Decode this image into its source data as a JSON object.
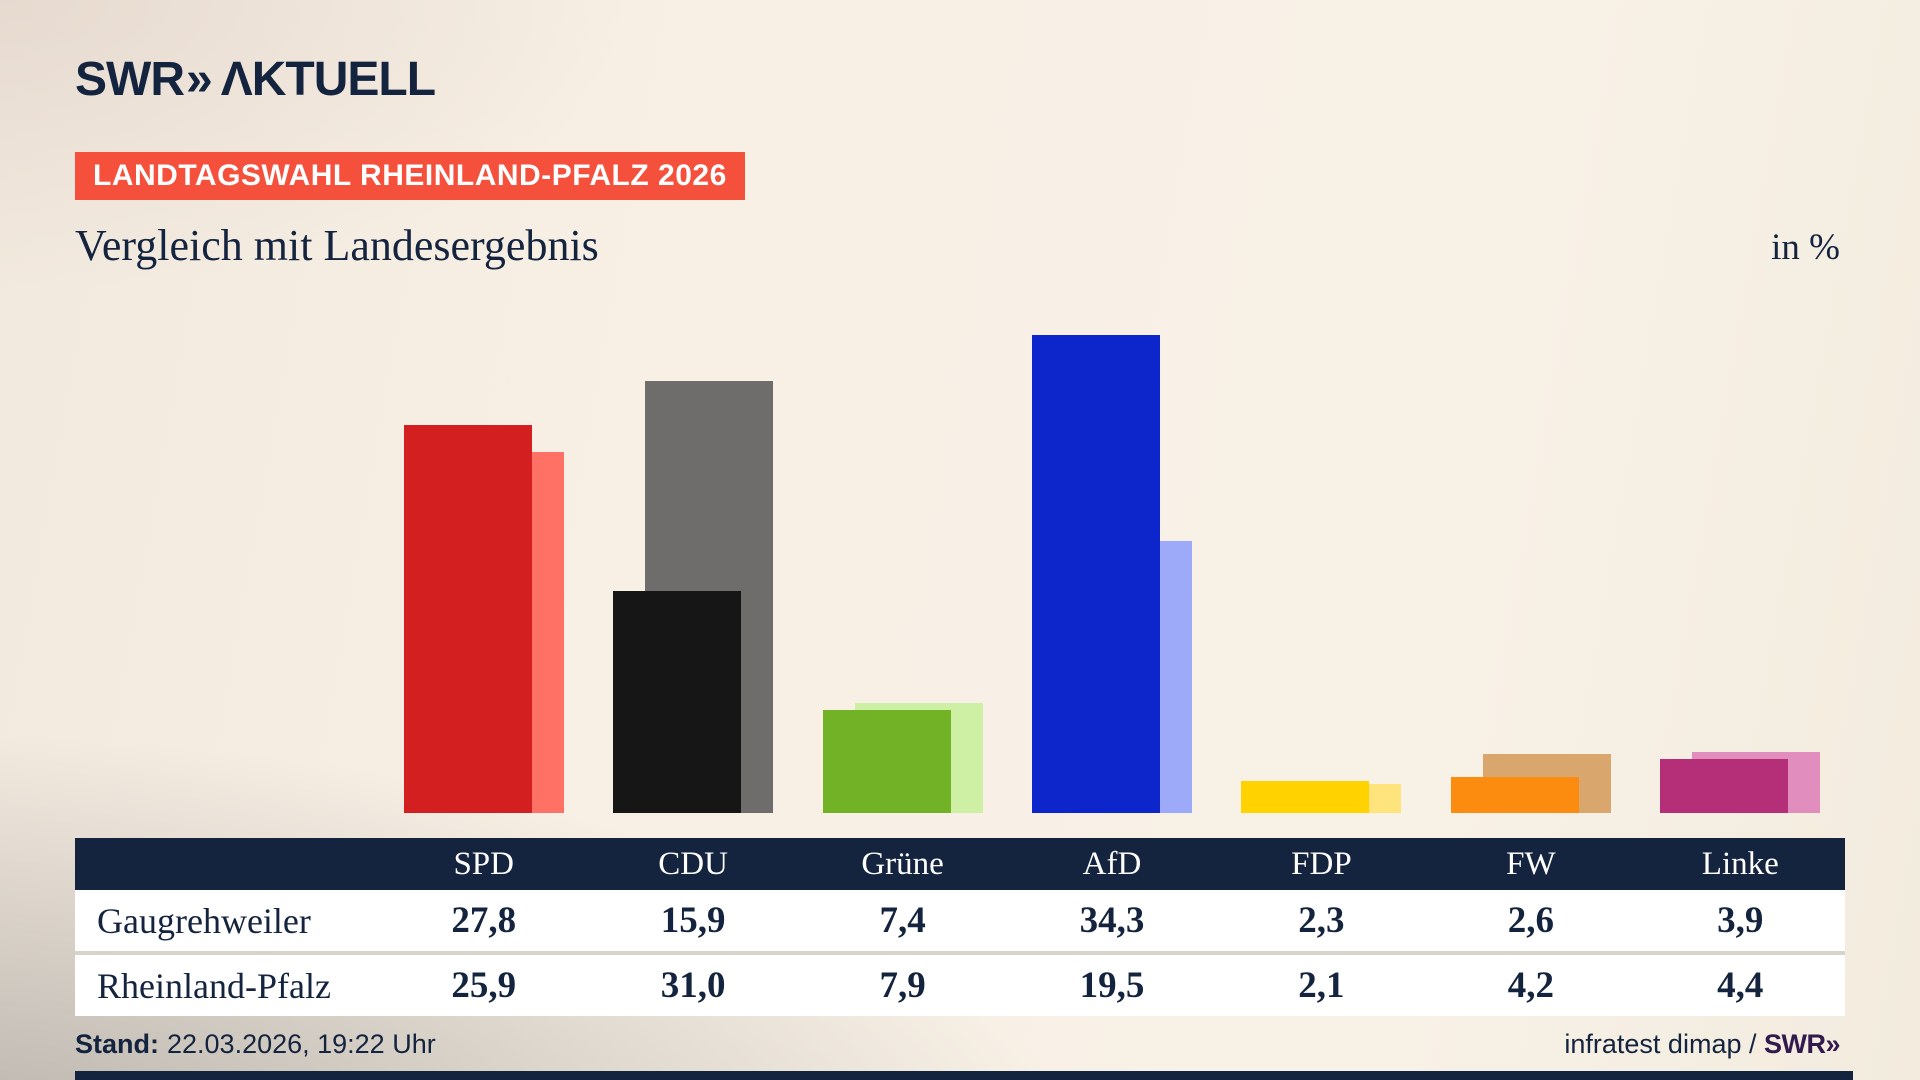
{
  "header": {
    "logo_brand": "SWR",
    "logo_chevron": "»",
    "logo_product": "ΛKTUELL",
    "badge": "LANDTAGSWAHL RHEINLAND-PFALZ 2026",
    "title": "Vergleich mit Landesergebnis",
    "unit_label": "in %"
  },
  "chart_data": {
    "type": "bar",
    "title": "Vergleich mit Landesergebnis",
    "unit": "in %",
    "categories": [
      "SPD",
      "CDU",
      "Grüne",
      "AfD",
      "FDP",
      "FW",
      "Linke"
    ],
    "series": [
      {
        "name": "Gaugrehweiler",
        "values": [
          27.8,
          15.9,
          7.4,
          34.3,
          2.3,
          2.6,
          3.9
        ]
      },
      {
        "name": "Rheinland-Pfalz",
        "values": [
          25.9,
          31.0,
          7.9,
          19.5,
          2.1,
          4.2,
          4.4
        ]
      }
    ],
    "bar_colors": {
      "gaugrehweiler": [
        "#d31f1f",
        "#161616",
        "#72b226",
        "#0c26cc",
        "#ffd200",
        "#fc8c10",
        "#b52f78"
      ],
      "rheinland_pfalz": [
        "#ff7165",
        "#6e6d6b",
        "#cdf0a4",
        "#9daafa",
        "#ffe37d",
        "#d9a76e",
        "#e18dbd"
      ]
    },
    "ylim": [
      0,
      36
    ],
    "grid": false,
    "legend_position": "table-below"
  },
  "footer": {
    "stand_label": "Stand:",
    "stand_value": "22.03.2026, 19:22 Uhr",
    "source_prefix": "infratest dimap / ",
    "source_brand": "SWR»"
  },
  "colors": {
    "navy": "#14243f",
    "badge_red": "#f4503c",
    "row_bg": "#ffffff",
    "separator": "#d8d3cb",
    "source_brand_purple": "#331a4d",
    "background_beige": "#f8f0e5"
  }
}
